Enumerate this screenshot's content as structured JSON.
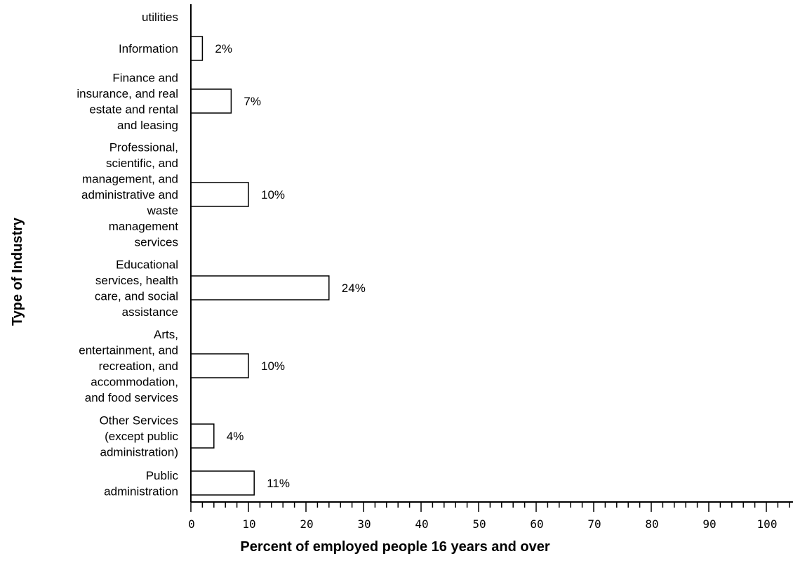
{
  "chart_data": {
    "type": "bar",
    "orientation": "horizontal",
    "categories": [
      "utilities",
      "Information",
      "Finance and insurance, and real estate and rental and leasing",
      "Professional, scientific, and management, and administrative and waste management services",
      "Educational services, health care, and social assistance",
      "Arts, entertainment, and recreation, and accommodation, and food services",
      "Other Services (except public administration)",
      "Public administration"
    ],
    "category_lines": [
      [
        "utilities"
      ],
      [
        "Information"
      ],
      [
        "Finance and",
        "insurance, and real",
        "estate and rental",
        "and leasing"
      ],
      [
        "Professional,",
        "scientific, and",
        "management, and",
        "administrative and",
        "waste",
        "management",
        "services"
      ],
      [
        "Educational",
        "services, health",
        "care, and social",
        "assistance"
      ],
      [
        "Arts,",
        "entertainment, and",
        "recreation, and",
        "accommodation,",
        "and food services"
      ],
      [
        "Other Services",
        "(except public",
        "administration)"
      ],
      [
        "Public",
        "administration"
      ]
    ],
    "values": [
      null,
      2,
      7,
      10,
      24,
      10,
      4,
      11
    ],
    "value_labels": [
      "",
      "2%",
      "7%",
      "10%",
      "24%",
      "10%",
      "4%",
      "11%"
    ],
    "xlim": [
      0,
      100
    ],
    "xticks": [
      "0",
      "10",
      "20",
      "30",
      "40",
      "50",
      "60",
      "70",
      "80",
      "90",
      "100"
    ],
    "xlabel": "Percent of employed people 16 years and over",
    "ylabel": "Type of Industry",
    "grid": false,
    "bar_fill": "#ffffff",
    "bar_stroke": "#000000"
  }
}
